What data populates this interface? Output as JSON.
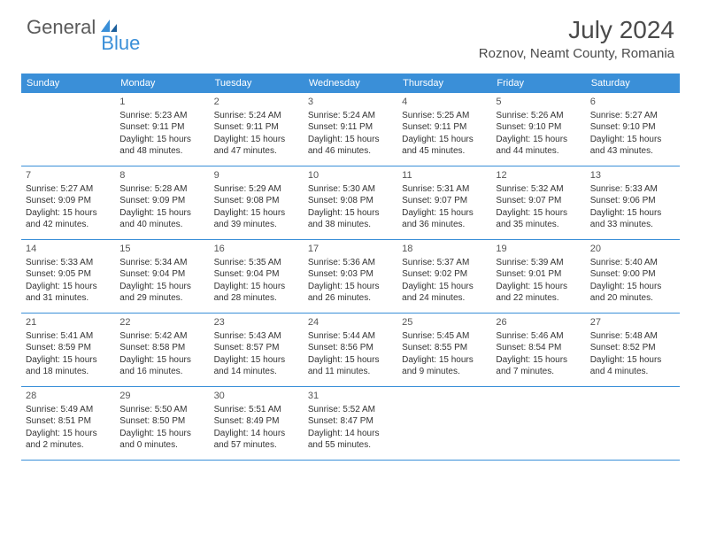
{
  "logo": {
    "text1": "General",
    "text2": "Blue"
  },
  "title": "July 2024",
  "location": "Roznov, Neamt County, Romania",
  "weekdays": [
    "Sunday",
    "Monday",
    "Tuesday",
    "Wednesday",
    "Thursday",
    "Friday",
    "Saturday"
  ],
  "colors": {
    "header_bg": "#3a8fd8",
    "header_text": "#ffffff",
    "border": "#3a8fd8",
    "body_text": "#333333",
    "title_text": "#4a4a4a"
  },
  "fonts": {
    "title_size": 28,
    "location_size": 15,
    "weekday_size": 11,
    "daynum_size": 11,
    "body_size": 10
  },
  "weeks": [
    [
      {
        "n": "",
        "l": []
      },
      {
        "n": "1",
        "l": [
          "Sunrise: 5:23 AM",
          "Sunset: 9:11 PM",
          "Daylight: 15 hours",
          "and 48 minutes."
        ]
      },
      {
        "n": "2",
        "l": [
          "Sunrise: 5:24 AM",
          "Sunset: 9:11 PM",
          "Daylight: 15 hours",
          "and 47 minutes."
        ]
      },
      {
        "n": "3",
        "l": [
          "Sunrise: 5:24 AM",
          "Sunset: 9:11 PM",
          "Daylight: 15 hours",
          "and 46 minutes."
        ]
      },
      {
        "n": "4",
        "l": [
          "Sunrise: 5:25 AM",
          "Sunset: 9:11 PM",
          "Daylight: 15 hours",
          "and 45 minutes."
        ]
      },
      {
        "n": "5",
        "l": [
          "Sunrise: 5:26 AM",
          "Sunset: 9:10 PM",
          "Daylight: 15 hours",
          "and 44 minutes."
        ]
      },
      {
        "n": "6",
        "l": [
          "Sunrise: 5:27 AM",
          "Sunset: 9:10 PM",
          "Daylight: 15 hours",
          "and 43 minutes."
        ]
      }
    ],
    [
      {
        "n": "7",
        "l": [
          "Sunrise: 5:27 AM",
          "Sunset: 9:09 PM",
          "Daylight: 15 hours",
          "and 42 minutes."
        ]
      },
      {
        "n": "8",
        "l": [
          "Sunrise: 5:28 AM",
          "Sunset: 9:09 PM",
          "Daylight: 15 hours",
          "and 40 minutes."
        ]
      },
      {
        "n": "9",
        "l": [
          "Sunrise: 5:29 AM",
          "Sunset: 9:08 PM",
          "Daylight: 15 hours",
          "and 39 minutes."
        ]
      },
      {
        "n": "10",
        "l": [
          "Sunrise: 5:30 AM",
          "Sunset: 9:08 PM",
          "Daylight: 15 hours",
          "and 38 minutes."
        ]
      },
      {
        "n": "11",
        "l": [
          "Sunrise: 5:31 AM",
          "Sunset: 9:07 PM",
          "Daylight: 15 hours",
          "and 36 minutes."
        ]
      },
      {
        "n": "12",
        "l": [
          "Sunrise: 5:32 AM",
          "Sunset: 9:07 PM",
          "Daylight: 15 hours",
          "and 35 minutes."
        ]
      },
      {
        "n": "13",
        "l": [
          "Sunrise: 5:33 AM",
          "Sunset: 9:06 PM",
          "Daylight: 15 hours",
          "and 33 minutes."
        ]
      }
    ],
    [
      {
        "n": "14",
        "l": [
          "Sunrise: 5:33 AM",
          "Sunset: 9:05 PM",
          "Daylight: 15 hours",
          "and 31 minutes."
        ]
      },
      {
        "n": "15",
        "l": [
          "Sunrise: 5:34 AM",
          "Sunset: 9:04 PM",
          "Daylight: 15 hours",
          "and 29 minutes."
        ]
      },
      {
        "n": "16",
        "l": [
          "Sunrise: 5:35 AM",
          "Sunset: 9:04 PM",
          "Daylight: 15 hours",
          "and 28 minutes."
        ]
      },
      {
        "n": "17",
        "l": [
          "Sunrise: 5:36 AM",
          "Sunset: 9:03 PM",
          "Daylight: 15 hours",
          "and 26 minutes."
        ]
      },
      {
        "n": "18",
        "l": [
          "Sunrise: 5:37 AM",
          "Sunset: 9:02 PM",
          "Daylight: 15 hours",
          "and 24 minutes."
        ]
      },
      {
        "n": "19",
        "l": [
          "Sunrise: 5:39 AM",
          "Sunset: 9:01 PM",
          "Daylight: 15 hours",
          "and 22 minutes."
        ]
      },
      {
        "n": "20",
        "l": [
          "Sunrise: 5:40 AM",
          "Sunset: 9:00 PM",
          "Daylight: 15 hours",
          "and 20 minutes."
        ]
      }
    ],
    [
      {
        "n": "21",
        "l": [
          "Sunrise: 5:41 AM",
          "Sunset: 8:59 PM",
          "Daylight: 15 hours",
          "and 18 minutes."
        ]
      },
      {
        "n": "22",
        "l": [
          "Sunrise: 5:42 AM",
          "Sunset: 8:58 PM",
          "Daylight: 15 hours",
          "and 16 minutes."
        ]
      },
      {
        "n": "23",
        "l": [
          "Sunrise: 5:43 AM",
          "Sunset: 8:57 PM",
          "Daylight: 15 hours",
          "and 14 minutes."
        ]
      },
      {
        "n": "24",
        "l": [
          "Sunrise: 5:44 AM",
          "Sunset: 8:56 PM",
          "Daylight: 15 hours",
          "and 11 minutes."
        ]
      },
      {
        "n": "25",
        "l": [
          "Sunrise: 5:45 AM",
          "Sunset: 8:55 PM",
          "Daylight: 15 hours",
          "and 9 minutes."
        ]
      },
      {
        "n": "26",
        "l": [
          "Sunrise: 5:46 AM",
          "Sunset: 8:54 PM",
          "Daylight: 15 hours",
          "and 7 minutes."
        ]
      },
      {
        "n": "27",
        "l": [
          "Sunrise: 5:48 AM",
          "Sunset: 8:52 PM",
          "Daylight: 15 hours",
          "and 4 minutes."
        ]
      }
    ],
    [
      {
        "n": "28",
        "l": [
          "Sunrise: 5:49 AM",
          "Sunset: 8:51 PM",
          "Daylight: 15 hours",
          "and 2 minutes."
        ]
      },
      {
        "n": "29",
        "l": [
          "Sunrise: 5:50 AM",
          "Sunset: 8:50 PM",
          "Daylight: 15 hours",
          "and 0 minutes."
        ]
      },
      {
        "n": "30",
        "l": [
          "Sunrise: 5:51 AM",
          "Sunset: 8:49 PM",
          "Daylight: 14 hours",
          "and 57 minutes."
        ]
      },
      {
        "n": "31",
        "l": [
          "Sunrise: 5:52 AM",
          "Sunset: 8:47 PM",
          "Daylight: 14 hours",
          "and 55 minutes."
        ]
      },
      {
        "n": "",
        "l": []
      },
      {
        "n": "",
        "l": []
      },
      {
        "n": "",
        "l": []
      }
    ]
  ]
}
